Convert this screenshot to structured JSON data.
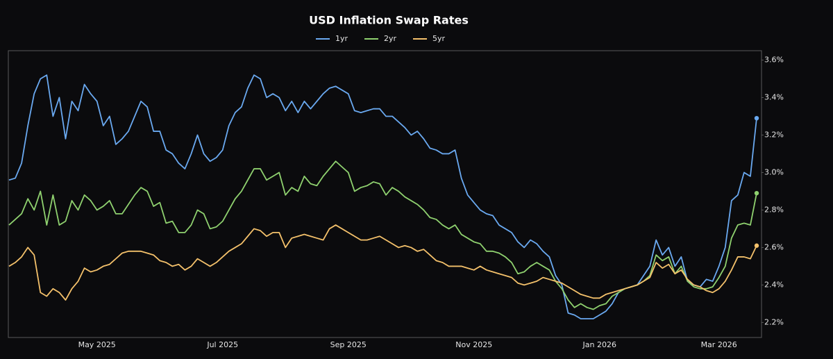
{
  "chart_data": {
    "type": "line",
    "title": "USD Inflation Swap Rates",
    "legend": "top",
    "grid": false,
    "categories": [
      null,
      null,
      null,
      null,
      null,
      null,
      null,
      null,
      null,
      null,
      null,
      null,
      null,
      null,
      "May 2025",
      null,
      null,
      null,
      null,
      null,
      null,
      null,
      null,
      null,
      null,
      null,
      null,
      null,
      null,
      null,
      null,
      null,
      null,
      null,
      "Jul 2025",
      null,
      null,
      null,
      null,
      null,
      null,
      null,
      null,
      null,
      null,
      null,
      null,
      null,
      null,
      null,
      null,
      null,
      null,
      null,
      "Sep 2025",
      null,
      null,
      null,
      null,
      null,
      null,
      null,
      null,
      null,
      null,
      null,
      null,
      null,
      null,
      null,
      null,
      null,
      null,
      null,
      "Nov 2025",
      null,
      null,
      null,
      null,
      null,
      null,
      null,
      null,
      null,
      null,
      null,
      null,
      null,
      null,
      null,
      null,
      null,
      null,
      null,
      "Jan 2026",
      null,
      null,
      null,
      null,
      null,
      null,
      null,
      null,
      null,
      null,
      null,
      null,
      null,
      null,
      null,
      null,
      null,
      null,
      "Mar 2026",
      null,
      null,
      null,
      null,
      null,
      null
    ],
    "series": [
      {
        "name": "1yr",
        "color": "#6aa9f0",
        "values": [
          2.96,
          2.97,
          3.05,
          3.25,
          3.42,
          3.5,
          3.52,
          3.3,
          3.4,
          3.18,
          3.38,
          3.33,
          3.47,
          3.42,
          3.38,
          3.25,
          3.3,
          3.15,
          3.18,
          3.22,
          3.3,
          3.38,
          3.35,
          3.22,
          3.22,
          3.12,
          3.1,
          3.05,
          3.02,
          3.1,
          3.2,
          3.1,
          3.06,
          3.08,
          3.12,
          3.25,
          3.32,
          3.35,
          3.45,
          3.52,
          3.5,
          3.4,
          3.42,
          3.4,
          3.33,
          3.38,
          3.32,
          3.38,
          3.34,
          3.38,
          3.42,
          3.45,
          3.46,
          3.44,
          3.42,
          3.33,
          3.32,
          3.33,
          3.34,
          3.34,
          3.3,
          3.3,
          3.27,
          3.24,
          3.2,
          3.22,
          3.18,
          3.13,
          3.12,
          3.1,
          3.1,
          3.12,
          2.97,
          2.88,
          2.84,
          2.8,
          2.78,
          2.77,
          2.72,
          2.7,
          2.68,
          2.63,
          2.6,
          2.64,
          2.62,
          2.58,
          2.55,
          2.45,
          2.4,
          2.25,
          2.24,
          2.22,
          2.22,
          2.22,
          2.24,
          2.26,
          2.3,
          2.36,
          2.38,
          2.39,
          2.4,
          2.45,
          2.5,
          2.64,
          2.56,
          2.6,
          2.5,
          2.55,
          2.42,
          2.4,
          2.39,
          2.43,
          2.42,
          2.5,
          2.6,
          2.85,
          2.88,
          3.0,
          2.98,
          3.29
        ]
      },
      {
        "name": "2yr",
        "color": "#8fd16f",
        "values": [
          2.72,
          2.75,
          2.78,
          2.86,
          2.8,
          2.9,
          2.72,
          2.88,
          2.72,
          2.74,
          2.85,
          2.8,
          2.88,
          2.85,
          2.8,
          2.82,
          2.85,
          2.78,
          2.78,
          2.83,
          2.88,
          2.92,
          2.9,
          2.82,
          2.84,
          2.73,
          2.74,
          2.68,
          2.68,
          2.72,
          2.8,
          2.78,
          2.7,
          2.71,
          2.74,
          2.8,
          2.86,
          2.9,
          2.96,
          3.02,
          3.02,
          2.96,
          2.98,
          3.0,
          2.88,
          2.92,
          2.9,
          2.98,
          2.94,
          2.93,
          2.98,
          3.02,
          3.06,
          3.03,
          3.0,
          2.9,
          2.92,
          2.93,
          2.95,
          2.94,
          2.88,
          2.92,
          2.9,
          2.87,
          2.85,
          2.83,
          2.8,
          2.76,
          2.75,
          2.72,
          2.7,
          2.72,
          2.67,
          2.65,
          2.63,
          2.62,
          2.58,
          2.58,
          2.57,
          2.55,
          2.52,
          2.46,
          2.47,
          2.5,
          2.52,
          2.5,
          2.48,
          2.42,
          2.38,
          2.32,
          2.28,
          2.3,
          2.28,
          2.27,
          2.29,
          2.3,
          2.34,
          2.36,
          2.38,
          2.39,
          2.4,
          2.42,
          2.45,
          2.56,
          2.53,
          2.55,
          2.46,
          2.5,
          2.42,
          2.39,
          2.38,
          2.38,
          2.39,
          2.44,
          2.5,
          2.65,
          2.72,
          2.73,
          2.72,
          2.89
        ]
      },
      {
        "name": "5yr",
        "color": "#f4c16b",
        "values": [
          2.5,
          2.52,
          2.55,
          2.6,
          2.56,
          2.36,
          2.34,
          2.38,
          2.36,
          2.32,
          2.38,
          2.42,
          2.49,
          2.47,
          2.48,
          2.5,
          2.51,
          2.54,
          2.57,
          2.58,
          2.58,
          2.58,
          2.57,
          2.56,
          2.53,
          2.52,
          2.5,
          2.51,
          2.48,
          2.5,
          2.54,
          2.52,
          2.5,
          2.52,
          2.55,
          2.58,
          2.6,
          2.62,
          2.66,
          2.7,
          2.69,
          2.66,
          2.68,
          2.68,
          2.6,
          2.65,
          2.66,
          2.67,
          2.66,
          2.65,
          2.64,
          2.7,
          2.72,
          2.7,
          2.68,
          2.66,
          2.64,
          2.64,
          2.65,
          2.66,
          2.64,
          2.62,
          2.6,
          2.61,
          2.6,
          2.58,
          2.59,
          2.56,
          2.53,
          2.52,
          2.5,
          2.5,
          2.5,
          2.49,
          2.48,
          2.5,
          2.48,
          2.47,
          2.46,
          2.45,
          2.44,
          2.41,
          2.4,
          2.41,
          2.42,
          2.44,
          2.43,
          2.42,
          2.41,
          2.39,
          2.37,
          2.35,
          2.34,
          2.33,
          2.33,
          2.35,
          2.36,
          2.37,
          2.38,
          2.39,
          2.4,
          2.42,
          2.44,
          2.52,
          2.49,
          2.51,
          2.46,
          2.48,
          2.43,
          2.4,
          2.39,
          2.37,
          2.36,
          2.38,
          2.42,
          2.48,
          2.55,
          2.55,
          2.54,
          2.61
        ]
      }
    ],
    "ylim": [
      2.12,
      3.65
    ],
    "yticks": [
      {
        "value": 2.2,
        "label": "2.2%"
      },
      {
        "value": 2.4,
        "label": "2.4%"
      },
      {
        "value": 2.6,
        "label": "2.6%"
      },
      {
        "value": 2.8,
        "label": "2.8%"
      },
      {
        "value": 3.0,
        "label": "3.0%"
      },
      {
        "value": 3.2,
        "label": "3.2%"
      },
      {
        "value": 3.4,
        "label": "3.4%"
      },
      {
        "value": 3.6,
        "label": "3.6%"
      }
    ]
  }
}
